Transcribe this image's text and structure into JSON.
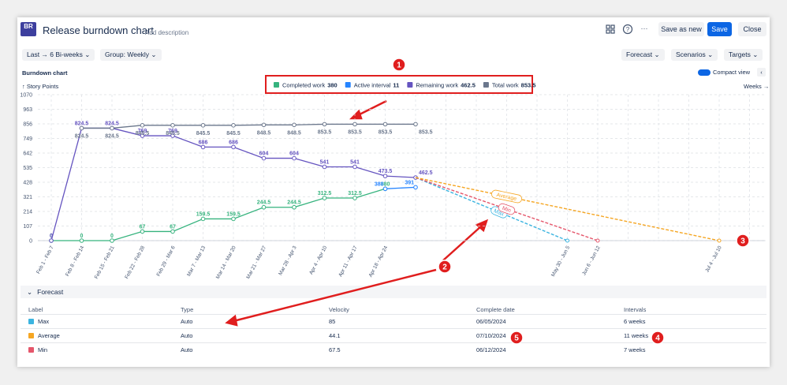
{
  "header": {
    "logo": "BR",
    "title": "Release burndown chart",
    "description": "Add description",
    "buttons": [
      "Save as new",
      "Save",
      "Close"
    ]
  },
  "toolbar": {
    "left": [
      "Last → 6 Bi-weeks",
      "Group: Weekly"
    ],
    "right": [
      "Forecast",
      "Scenarios",
      "Targets"
    ]
  },
  "chart_data": {
    "type": "line",
    "title": "Burndown chart",
    "y_label": "↑ Story Points",
    "x_label": "Weeks →",
    "toggle": "Compact view",
    "categories": [
      "Feb 1 - Feb 7",
      "Feb 8 - Feb 14",
      "Feb 15 - Feb 21",
      "Feb 22 - Feb 28",
      "Feb 29 - Mar 6",
      "Mar 7 - Mar 13",
      "Mar 14 - Mar 20",
      "Mar 21 - Mar 27",
      "Mar 28 - Apr 3",
      "Apr 4 - Apr 10",
      "Apr 11 - Apr 17",
      "Apr 18 - Apr 24",
      null,
      null,
      null,
      null,
      null,
      "May 30 - Jun 5",
      "Jun 6 - Jun 12",
      null,
      null,
      null,
      "Jul 4 - Jul 10",
      null
    ],
    "ylim": [
      0,
      1070
    ],
    "yticks": [
      0,
      107,
      214,
      321,
      428,
      535,
      642,
      749,
      856,
      963,
      1070
    ],
    "grid": true,
    "series": [
      {
        "name": "Completed work",
        "total": 380,
        "color": "#36b37e",
        "values": [
          0,
          0,
          0,
          67,
          67,
          159.5,
          159.5,
          244.5,
          244.5,
          312.5,
          312.5,
          380,
          null,
          null,
          null,
          null,
          null,
          null,
          null,
          null,
          null,
          null,
          null,
          null
        ]
      },
      {
        "name": "Active interval",
        "total": 11,
        "color": "#2684ff",
        "values": [
          null,
          null,
          null,
          null,
          null,
          null,
          null,
          null,
          null,
          null,
          null,
          380,
          391,
          null,
          null,
          null,
          null,
          null,
          null,
          null,
          null,
          null,
          null,
          null
        ]
      },
      {
        "name": "Remaining work",
        "total": 462.5,
        "color": "#6554c0",
        "values": [
          0,
          824.5,
          824.5,
          769,
          769,
          686,
          686,
          604,
          604,
          541,
          541,
          473.5,
          462.5,
          null,
          null,
          null,
          null,
          null,
          null,
          null,
          null,
          null,
          null,
          null
        ]
      },
      {
        "name": "Total work",
        "total": 853.5,
        "color": "#6b778c",
        "values": [
          null,
          824.5,
          824.5,
          845.5,
          845.5,
          845.5,
          845.5,
          848.5,
          848.5,
          853.5,
          853.5,
          853.5,
          853.5,
          null,
          null,
          null,
          null,
          null,
          null,
          null,
          null,
          null,
          null,
          null
        ]
      }
    ],
    "forecasts": [
      {
        "name": "Max",
        "color": "#3bb4e0",
        "x": [
          12,
          17
        ],
        "values": [
          462.5,
          0
        ]
      },
      {
        "name": "Min",
        "color": "#e5566b",
        "x": [
          12,
          18
        ],
        "values": [
          462.5,
          0
        ]
      },
      {
        "name": "Average",
        "color": "#f5a623",
        "x": [
          12,
          22
        ],
        "values": [
          462.5,
          0
        ]
      }
    ]
  },
  "forecast_table": {
    "title": "Forecast",
    "columns": [
      "Label",
      "Type",
      "Velocity",
      "Complete date",
      "Intervals"
    ],
    "rows": [
      {
        "label": "Max",
        "color": "#3bb4e0",
        "type": "Auto",
        "velocity": 85,
        "complete_date": "06/05/2024",
        "intervals": "6 weeks"
      },
      {
        "label": "Average",
        "color": "#f5a623",
        "type": "Auto",
        "velocity": 44.1,
        "complete_date": "07/10/2024",
        "intervals": "11 weeks"
      },
      {
        "label": "Min",
        "color": "#e5566b",
        "type": "Auto",
        "velocity": 67.5,
        "complete_date": "06/12/2024",
        "intervals": "7 weeks"
      }
    ]
  },
  "annotations": [
    "1",
    "2",
    "3",
    "4",
    "5"
  ]
}
